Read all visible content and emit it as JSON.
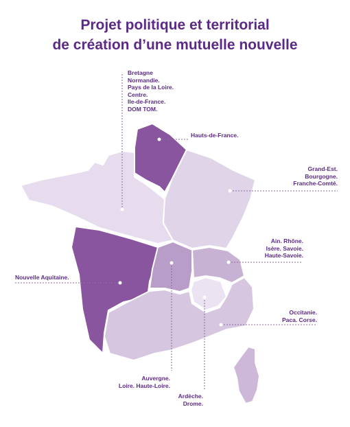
{
  "title": {
    "line1": "Projet politique et territorial",
    "line2": "de création d’une mutuelle nouvelle"
  },
  "colors": {
    "title": "#5b2a86",
    "dark_region": "#8a559f",
    "mid_region": "#b89dc8",
    "light_region": "#d9cbe3",
    "pale_region": "#e6dcee",
    "border": "#ffffff",
    "leader_line": "#8a6aa0"
  },
  "regions": {
    "northwest": [
      "Bretagne",
      "Normandie.",
      "Pays de la Loire.",
      "Centre.",
      "Ile-de-France.",
      "DOM TOM."
    ],
    "north": [
      "Hauts-de-France."
    ],
    "east": [
      "Grand-Est.",
      "Bourgogne.",
      "Franche-Comté."
    ],
    "alps": [
      "Ain. Rhône.",
      "Isère. Savoie.",
      "Haute-Savoie."
    ],
    "southwest": [
      "Nouvelle Aquitaine."
    ],
    "south": [
      "Occitanie.",
      "Paca. Corse."
    ],
    "auvergne": [
      "Auvergne.",
      "Loire. Haute-Loire."
    ],
    "ardeche": [
      "Ardèche.",
      "Drome."
    ]
  }
}
